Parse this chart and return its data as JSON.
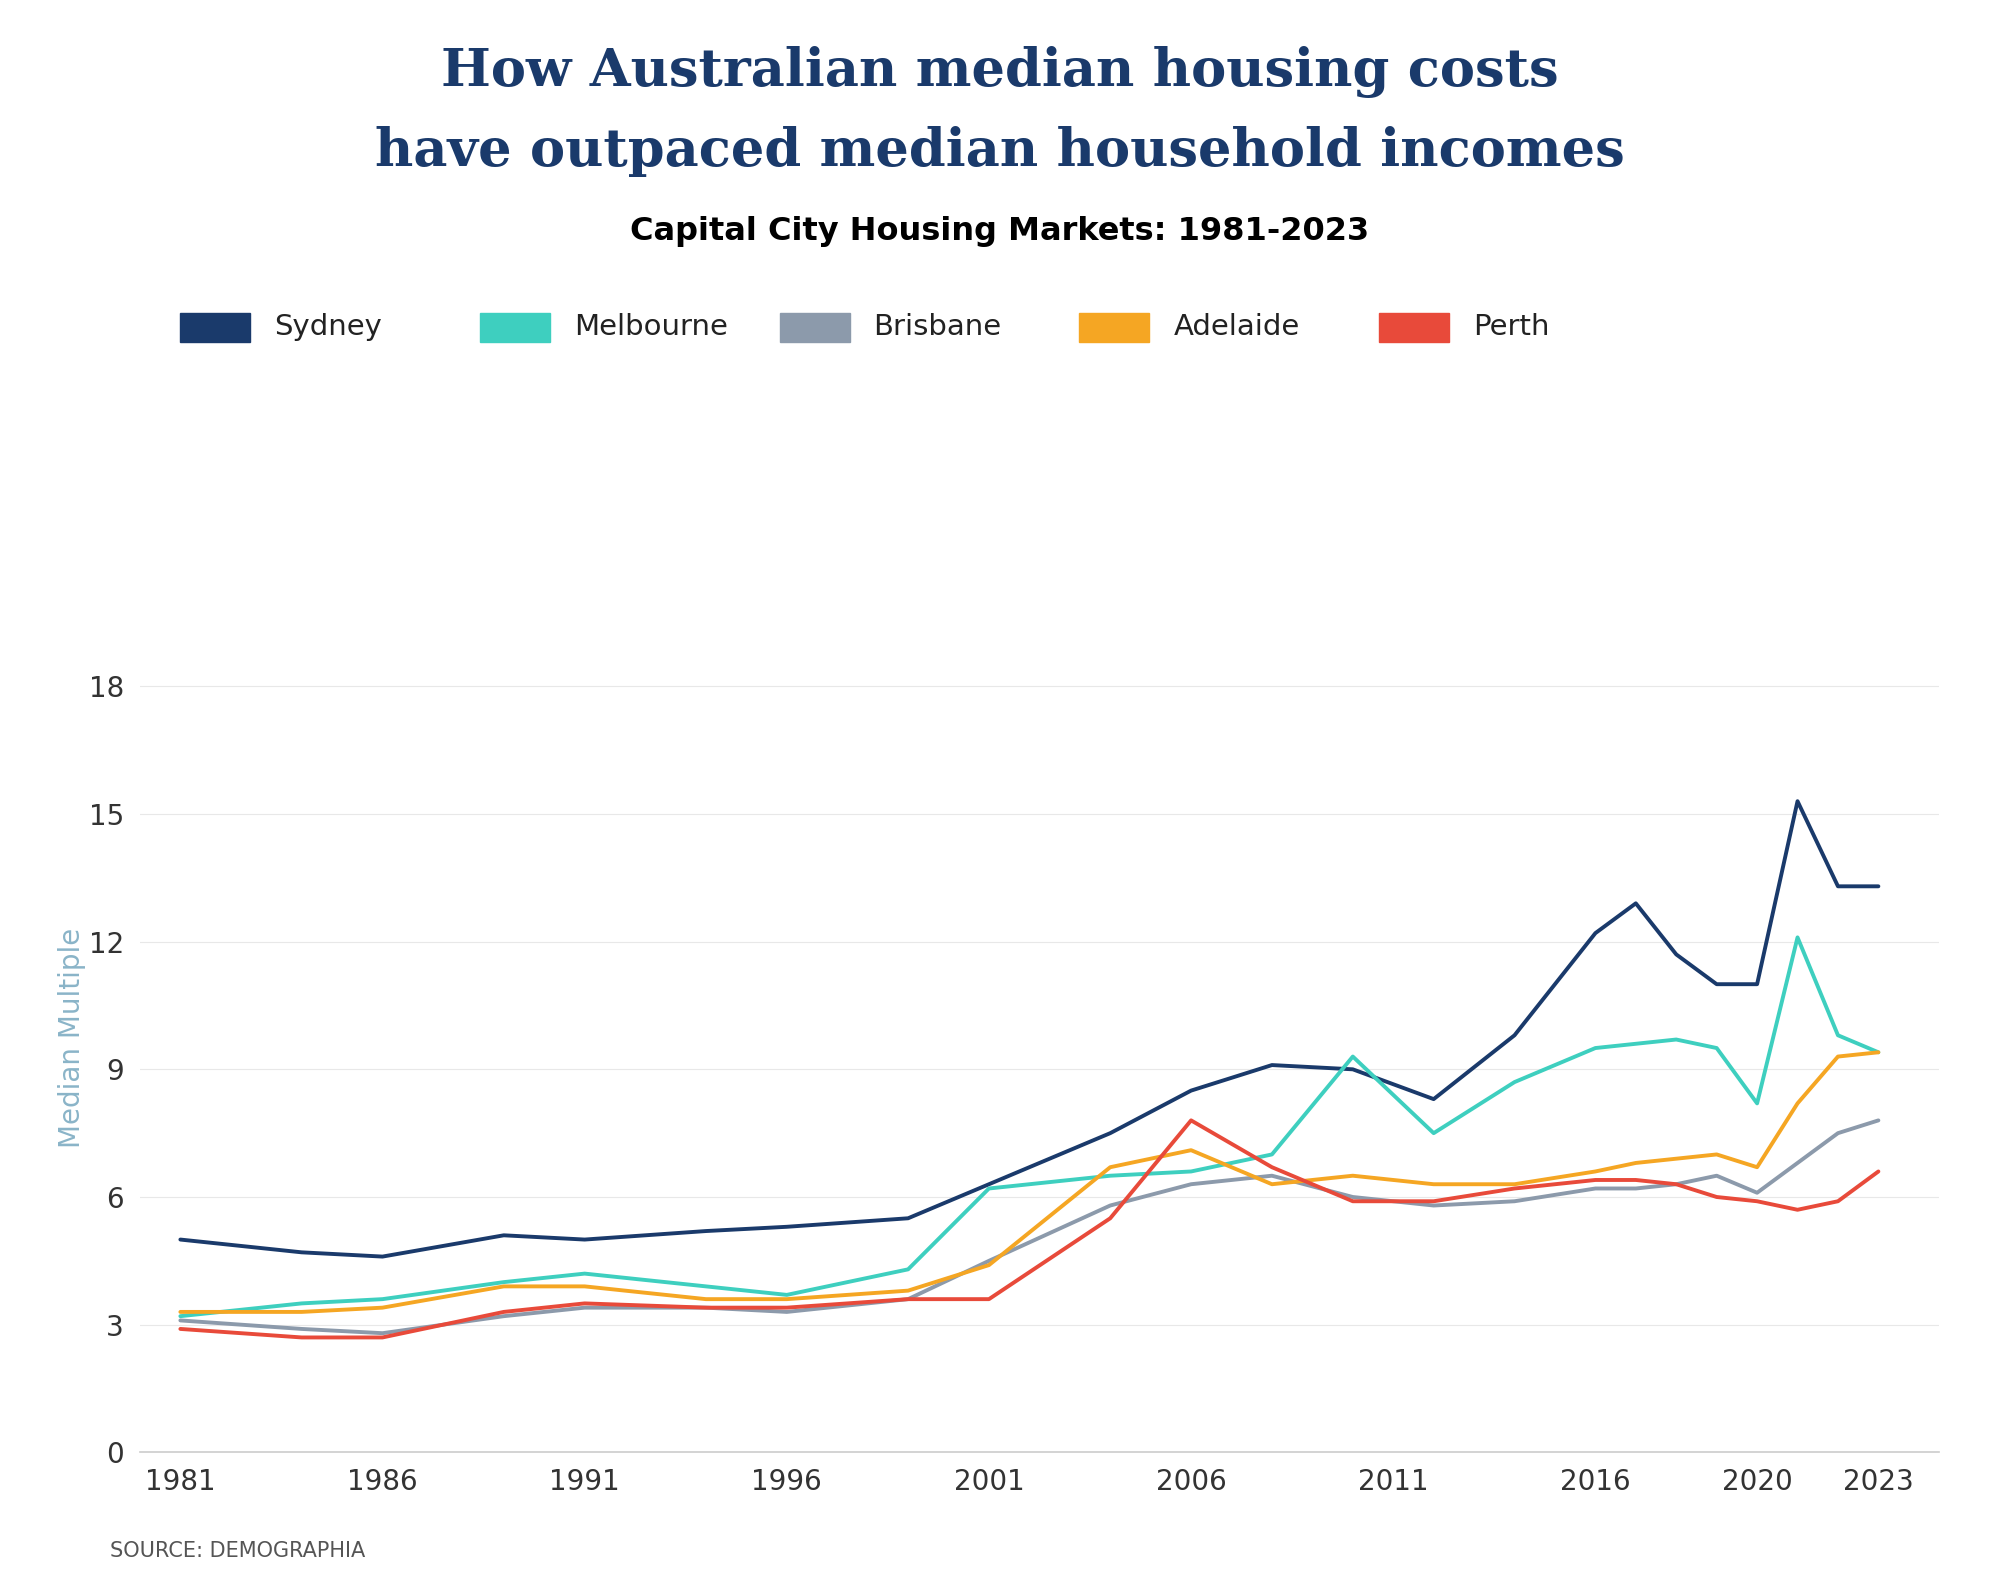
{
  "title_line1": "How Australian median housing costs",
  "title_line2": "have outpaced median household incomes",
  "subtitle": "Capital City Housing Markets: 1981-2023",
  "ylabel": "Median Multiple",
  "source": "SOURCE: DEMOGRAPHIA",
  "background_color": "#ffffff",
  "title_color": "#1a3a6b",
  "subtitle_color": "#000000",
  "ylabel_color": "#8ab4c8",
  "yticks": [
    0,
    3,
    6,
    9,
    12,
    15,
    18
  ],
  "xtick_positions": [
    1981,
    1986,
    1991,
    1996,
    2001,
    2006,
    2011,
    2016,
    2020,
    2023
  ],
  "xtick_labels": [
    "1981",
    "1986",
    "1991",
    "1996",
    "2001",
    "2006",
    "2011",
    "2016",
    "2020",
    "2023"
  ],
  "series": {
    "Sydney": {
      "color": "#1a3a6b",
      "linewidth": 2.8,
      "years": [
        1981,
        1984,
        1986,
        1989,
        1991,
        1994,
        1996,
        1999,
        2001,
        2004,
        2006,
        2008,
        2010,
        2012,
        2014,
        2016,
        2017,
        2018,
        2019,
        2020,
        2021,
        2022,
        2023
      ],
      "values": [
        5.0,
        4.7,
        4.6,
        5.1,
        5.0,
        5.2,
        5.3,
        5.5,
        6.3,
        7.5,
        8.5,
        9.1,
        9.0,
        8.3,
        9.8,
        12.2,
        12.9,
        11.7,
        11.0,
        11.0,
        15.3,
        13.3,
        13.3
      ]
    },
    "Melbourne": {
      "color": "#3ecfbf",
      "linewidth": 2.8,
      "years": [
        1981,
        1984,
        1986,
        1989,
        1991,
        1994,
        1996,
        1999,
        2001,
        2004,
        2006,
        2008,
        2010,
        2012,
        2014,
        2016,
        2017,
        2018,
        2019,
        2020,
        2021,
        2022,
        2023
      ],
      "values": [
        3.2,
        3.5,
        3.6,
        4.0,
        4.2,
        3.9,
        3.7,
        4.3,
        6.2,
        6.5,
        6.6,
        7.0,
        9.3,
        7.5,
        8.7,
        9.5,
        9.6,
        9.7,
        9.5,
        8.2,
        12.1,
        9.8,
        9.4
      ]
    },
    "Brisbane": {
      "color": "#8c9aab",
      "linewidth": 2.8,
      "years": [
        1981,
        1984,
        1986,
        1989,
        1991,
        1994,
        1996,
        1999,
        2001,
        2004,
        2006,
        2008,
        2010,
        2012,
        2014,
        2016,
        2017,
        2018,
        2019,
        2020,
        2021,
        2022,
        2023
      ],
      "values": [
        3.1,
        2.9,
        2.8,
        3.2,
        3.4,
        3.4,
        3.3,
        3.6,
        4.5,
        5.8,
        6.3,
        6.5,
        6.0,
        5.8,
        5.9,
        6.2,
        6.2,
        6.3,
        6.5,
        6.1,
        6.8,
        7.5,
        7.8
      ]
    },
    "Adelaide": {
      "color": "#f5a623",
      "linewidth": 2.8,
      "years": [
        1981,
        1984,
        1986,
        1989,
        1991,
        1994,
        1996,
        1999,
        2001,
        2004,
        2006,
        2008,
        2010,
        2012,
        2014,
        2016,
        2017,
        2018,
        2019,
        2020,
        2021,
        2022,
        2023
      ],
      "values": [
        3.3,
        3.3,
        3.4,
        3.9,
        3.9,
        3.6,
        3.6,
        3.8,
        4.4,
        6.7,
        7.1,
        6.3,
        6.5,
        6.3,
        6.3,
        6.6,
        6.8,
        6.9,
        7.0,
        6.7,
        8.2,
        9.3,
        9.4
      ]
    },
    "Perth": {
      "color": "#e84a3a",
      "linewidth": 2.8,
      "years": [
        1981,
        1984,
        1986,
        1989,
        1991,
        1994,
        1996,
        1999,
        2001,
        2004,
        2006,
        2008,
        2010,
        2012,
        2014,
        2016,
        2017,
        2018,
        2019,
        2020,
        2021,
        2022,
        2023
      ],
      "values": [
        2.9,
        2.7,
        2.7,
        3.3,
        3.5,
        3.4,
        3.4,
        3.6,
        3.6,
        5.5,
        7.8,
        6.7,
        5.9,
        5.9,
        6.2,
        6.4,
        6.4,
        6.3,
        6.0,
        5.9,
        5.7,
        5.9,
        6.6
      ]
    }
  },
  "legend_order": [
    "Sydney",
    "Melbourne",
    "Brisbane",
    "Adelaide",
    "Perth"
  ],
  "apu_box_color": "#1a3a6b",
  "apu_text_color": "#ffffff"
}
